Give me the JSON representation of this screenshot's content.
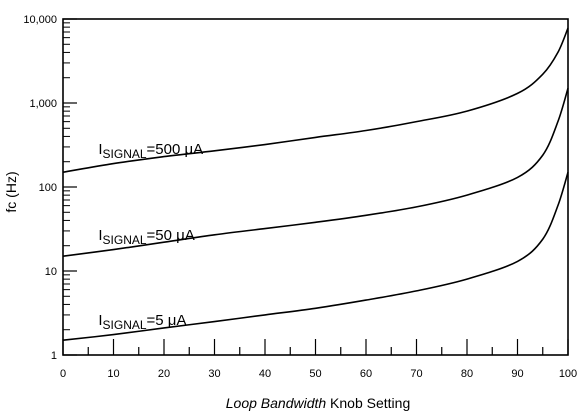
{
  "chart_data": {
    "type": "line",
    "x_scale": "linear",
    "y_scale": "log",
    "xlim": [
      0,
      100
    ],
    "ylim": [
      1,
      10000
    ],
    "x_ticks": [
      "0",
      "10",
      "20",
      "30",
      "40",
      "50",
      "60",
      "70",
      "80",
      "90",
      "100"
    ],
    "y_ticks": [
      "1",
      "10",
      "100",
      "1,000",
      "10,000"
    ],
    "xlabel_italic": "Loop Bandwidth",
    "xlabel_rest": " Knob Setting",
    "ylabel": "fc (Hz)",
    "grid": false,
    "series": [
      {
        "label_main": "I",
        "label_sub": "SIGNAL",
        "label_rest": "=500 μA",
        "x": [
          0,
          10,
          20,
          30,
          40,
          50,
          60,
          70,
          80,
          90,
          95,
          98,
          100
        ],
        "y": [
          150,
          190,
          230,
          270,
          320,
          390,
          470,
          600,
          800,
          1300,
          2200,
          4000,
          7800
        ]
      },
      {
        "label_main": "I",
        "label_sub": "SIGNAL",
        "label_rest": "=50 μA",
        "x": [
          0,
          10,
          20,
          30,
          40,
          50,
          60,
          70,
          80,
          90,
          95,
          98,
          100
        ],
        "y": [
          15,
          18,
          22,
          27,
          32,
          38,
          46,
          58,
          80,
          130,
          240,
          600,
          1500
        ]
      },
      {
        "label_main": "I",
        "label_sub": "SIGNAL",
        "label_rest": "=5 μA",
        "x": [
          0,
          10,
          20,
          30,
          40,
          50,
          60,
          70,
          80,
          90,
          95,
          98,
          100
        ],
        "y": [
          1.5,
          1.75,
          2.1,
          2.5,
          3.0,
          3.6,
          4.5,
          5.8,
          8.0,
          13,
          24,
          60,
          150
        ]
      }
    ]
  }
}
